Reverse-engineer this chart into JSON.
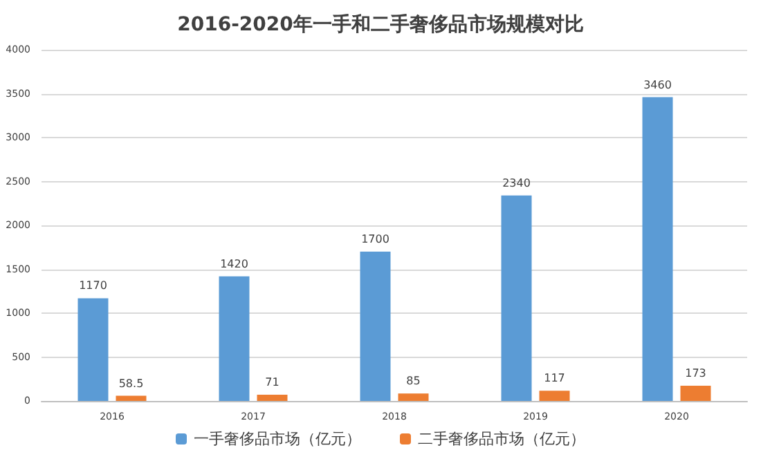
{
  "chart_data": {
    "type": "bar",
    "title": "2016-2020年一手和二手奢侈品市场规模对比",
    "categories": [
      "2016",
      "2017",
      "2018",
      "2019",
      "2020"
    ],
    "series": [
      {
        "name": "一手奢侈品市场（亿元）",
        "color": "#5b9bd5",
        "values": [
          1170,
          1420,
          1700,
          2340,
          3460
        ]
      },
      {
        "name": "二手奢侈品市场（亿元）",
        "color": "#ed7d31",
        "values": [
          58.5,
          71,
          85,
          117,
          173
        ]
      }
    ],
    "ylim": [
      0,
      4000
    ],
    "yticks": [
      0,
      500,
      1000,
      1500,
      2000,
      2500,
      3000,
      3500,
      4000
    ],
    "grid": "y",
    "legend": "bottom",
    "data_labels": true
  }
}
